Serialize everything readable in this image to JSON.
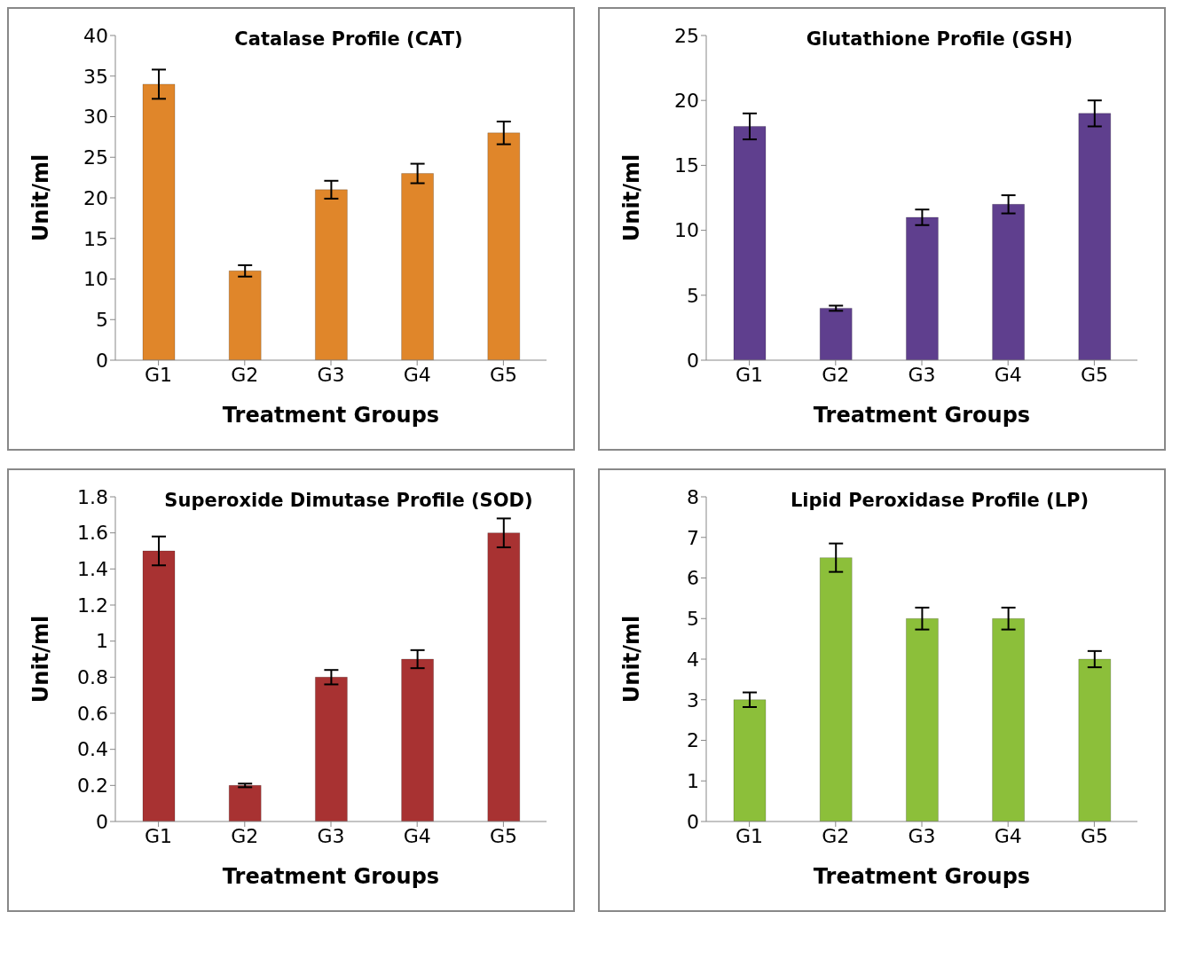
{
  "chart_data": [
    {
      "type": "bar",
      "title": "Catalase Profile (CAT)",
      "xlabel": "Treatment Groups",
      "ylabel": "Unit/ml",
      "categories": [
        "G1",
        "G2",
        "G3",
        "G4",
        "G5"
      ],
      "values": [
        34,
        11,
        21,
        23,
        28
      ],
      "errors": [
        1.8,
        0.7,
        1.1,
        1.2,
        1.4
      ],
      "color": "#e0862a",
      "ylim": [
        0,
        40
      ],
      "yticks": [
        0,
        5,
        10,
        15,
        20,
        25,
        30,
        35,
        40
      ],
      "grid": false,
      "legend": false
    },
    {
      "type": "bar",
      "title": "Glutathione Profile (GSH)",
      "xlabel": "Treatment Groups",
      "ylabel": "Unit/ml",
      "categories": [
        "G1",
        "G2",
        "G3",
        "G4",
        "G5"
      ],
      "values": [
        18,
        4,
        11,
        12,
        19
      ],
      "errors": [
        1,
        0.2,
        0.6,
        0.7,
        1
      ],
      "color": "#5f3f8e",
      "ylim": [
        0,
        25
      ],
      "yticks": [
        0,
        5,
        10,
        15,
        20,
        25
      ],
      "grid": false,
      "legend": false
    },
    {
      "type": "bar",
      "title": "Superoxide Dimutase Profile (SOD)",
      "xlabel": "Treatment Groups",
      "ylabel": "Unit/ml",
      "categories": [
        "G1",
        "G2",
        "G3",
        "G4",
        "G5"
      ],
      "values": [
        1.5,
        0.2,
        0.8,
        0.9,
        1.6
      ],
      "errors": [
        0.08,
        0.01,
        0.04,
        0.05,
        0.08
      ],
      "color": "#a83232",
      "ylim": [
        0,
        1.8
      ],
      "yticks": [
        0,
        0.2,
        0.4,
        0.6,
        0.8,
        1,
        1.2,
        1.4,
        1.6,
        1.8
      ],
      "grid": false,
      "legend": false
    },
    {
      "type": "bar",
      "title": "Lipid Peroxidase Profile (LP)",
      "xlabel": "Treatment Groups",
      "ylabel": "Unit/ml",
      "categories": [
        "G1",
        "G2",
        "G3",
        "G4",
        "G5"
      ],
      "values": [
        3,
        6.5,
        5,
        5,
        4
      ],
      "errors": [
        0.18,
        0.35,
        0.27,
        0.27,
        0.2
      ],
      "color": "#8cbf3a",
      "ylim": [
        0,
        8
      ],
      "yticks": [
        0,
        1,
        2,
        3,
        4,
        5,
        6,
        7,
        8
      ],
      "grid": false,
      "legend": false
    }
  ]
}
